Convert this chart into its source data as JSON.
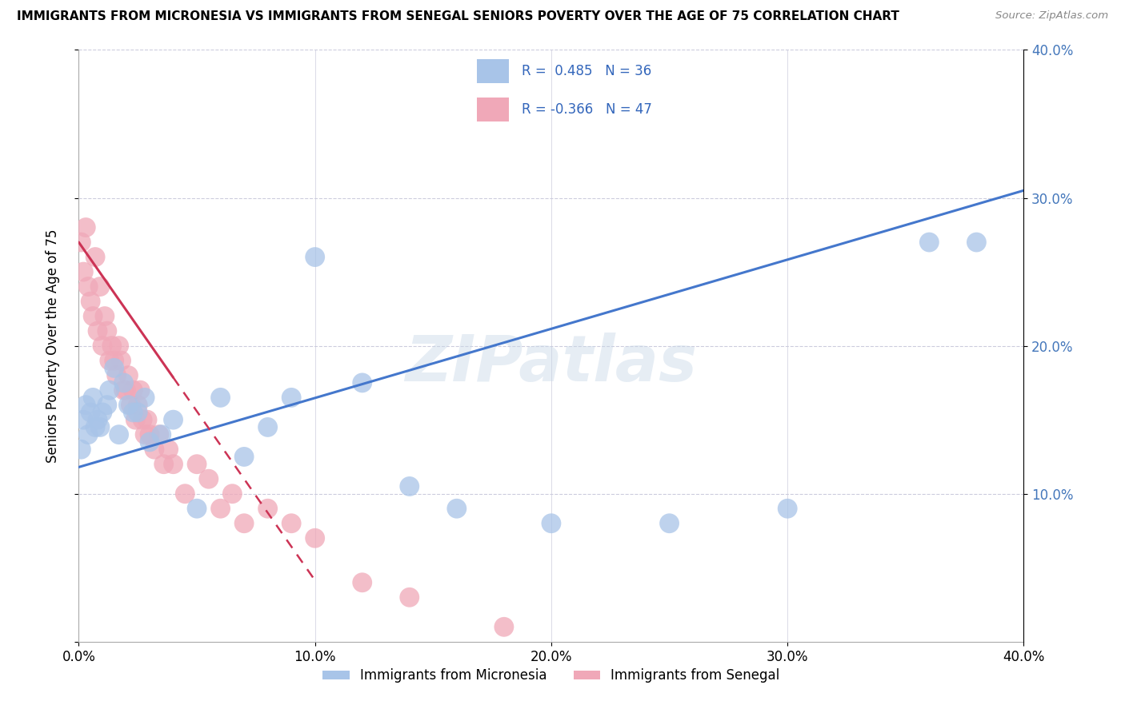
{
  "title": "IMMIGRANTS FROM MICRONESIA VS IMMIGRANTS FROM SENEGAL SENIORS POVERTY OVER THE AGE OF 75 CORRELATION CHART",
  "source": "Source: ZipAtlas.com",
  "ylabel": "Seniors Poverty Over the Age of 75",
  "legend_label1": "Immigrants from Micronesia",
  "legend_label2": "Immigrants from Senegal",
  "R1": 0.485,
  "N1": 36,
  "R2": -0.366,
  "N2": 47,
  "color_micro": "#a8c4e8",
  "color_senegal": "#f0a8b8",
  "line_color_micro": "#4477cc",
  "line_color_senegal": "#cc3355",
  "watermark": "ZIPatlas",
  "xlim": [
    0.0,
    0.4
  ],
  "ylim": [
    0.0,
    0.4
  ],
  "xticks": [
    0.0,
    0.1,
    0.2,
    0.3,
    0.4
  ],
  "yticks_left": [
    0.0,
    0.1,
    0.2,
    0.3,
    0.4
  ],
  "yticks_right": [
    0.1,
    0.2,
    0.3,
    0.4
  ],
  "micro_x": [
    0.001,
    0.002,
    0.003,
    0.004,
    0.005,
    0.006,
    0.007,
    0.008,
    0.009,
    0.01,
    0.012,
    0.013,
    0.015,
    0.017,
    0.019,
    0.021,
    0.023,
    0.025,
    0.028,
    0.03,
    0.035,
    0.04,
    0.05,
    0.06,
    0.07,
    0.08,
    0.09,
    0.1,
    0.12,
    0.14,
    0.16,
    0.2,
    0.25,
    0.3,
    0.36,
    0.38
  ],
  "micro_y": [
    0.13,
    0.15,
    0.16,
    0.14,
    0.155,
    0.165,
    0.145,
    0.15,
    0.145,
    0.155,
    0.16,
    0.17,
    0.185,
    0.14,
    0.175,
    0.16,
    0.155,
    0.155,
    0.165,
    0.135,
    0.14,
    0.15,
    0.09,
    0.165,
    0.125,
    0.145,
    0.165,
    0.26,
    0.175,
    0.105,
    0.09,
    0.08,
    0.08,
    0.09,
    0.27,
    0.27
  ],
  "senegal_x": [
    0.001,
    0.002,
    0.003,
    0.004,
    0.005,
    0.006,
    0.007,
    0.008,
    0.009,
    0.01,
    0.011,
    0.012,
    0.013,
    0.014,
    0.015,
    0.016,
    0.017,
    0.018,
    0.019,
    0.02,
    0.021,
    0.022,
    0.023,
    0.024,
    0.025,
    0.026,
    0.027,
    0.028,
    0.029,
    0.03,
    0.032,
    0.034,
    0.036,
    0.038,
    0.04,
    0.045,
    0.05,
    0.055,
    0.06,
    0.065,
    0.07,
    0.08,
    0.09,
    0.1,
    0.12,
    0.14,
    0.18
  ],
  "senegal_y": [
    0.27,
    0.25,
    0.28,
    0.24,
    0.23,
    0.22,
    0.26,
    0.21,
    0.24,
    0.2,
    0.22,
    0.21,
    0.19,
    0.2,
    0.19,
    0.18,
    0.2,
    0.19,
    0.17,
    0.17,
    0.18,
    0.16,
    0.17,
    0.15,
    0.16,
    0.17,
    0.15,
    0.14,
    0.15,
    0.14,
    0.13,
    0.14,
    0.12,
    0.13,
    0.12,
    0.1,
    0.12,
    0.11,
    0.09,
    0.1,
    0.08,
    0.09,
    0.08,
    0.07,
    0.04,
    0.03,
    0.01
  ],
  "blue_line_x0": 0.0,
  "blue_line_y0": 0.118,
  "blue_line_x1": 0.4,
  "blue_line_y1": 0.305,
  "pink_line_x0": 0.0,
  "pink_line_y0": 0.27,
  "pink_line_x1": 0.07,
  "pink_line_y1": 0.11
}
